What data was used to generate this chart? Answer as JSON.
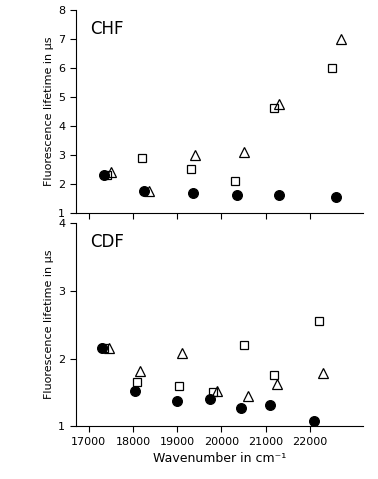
{
  "chf": {
    "label": "CHF",
    "ylim": [
      1,
      8
    ],
    "yticks": [
      1,
      2,
      3,
      4,
      5,
      6,
      7,
      8
    ],
    "squares": {
      "x": [
        17400,
        18200,
        19300,
        20300,
        21200,
        22500
      ],
      "y": [
        2.3,
        2.9,
        2.5,
        2.1,
        4.6,
        6.0
      ]
    },
    "triangles": {
      "x": [
        17500,
        18350,
        19400,
        20500,
        21300,
        22700
      ],
      "y": [
        2.4,
        1.75,
        3.0,
        3.1,
        4.75,
        7.0
      ]
    },
    "circles": {
      "x": [
        17350,
        18250,
        19350,
        20350,
        21300,
        22600
      ],
      "y": [
        2.3,
        1.75,
        1.7,
        1.6,
        1.6,
        1.55
      ]
    }
  },
  "cdf": {
    "label": "CDF",
    "ylim": [
      1,
      4
    ],
    "yticks": [
      1,
      2,
      3,
      4
    ],
    "squares": {
      "x": [
        17350,
        18100,
        19050,
        19800,
        20500,
        21200,
        22200
      ],
      "y": [
        2.15,
        1.65,
        1.6,
        1.5,
        2.2,
        1.75,
        2.55
      ]
    },
    "triangles": {
      "x": [
        17450,
        18150,
        19100,
        19900,
        20600,
        21250,
        22300
      ],
      "y": [
        2.15,
        1.82,
        2.08,
        1.52,
        1.45,
        1.62,
        1.78
      ]
    },
    "circles": {
      "x": [
        17300,
        18050,
        19000,
        19750,
        20450,
        21100,
        22100
      ],
      "y": [
        2.15,
        1.52,
        1.38,
        1.4,
        1.27,
        1.32,
        1.08
      ]
    }
  },
  "xlim": [
    16700,
    23200
  ],
  "xticks": [
    17000,
    18000,
    19000,
    20000,
    21000,
    22000
  ],
  "xlabel": "Wavenumber in cm⁻¹",
  "ylabel": "Fluorescence lifetime in μs",
  "marker_color_open": "none",
  "marker_color_filled": "black",
  "marker_edge_color": "black",
  "marker_size_square": 6,
  "marker_size_triangle": 7,
  "marker_size_circle": 7
}
